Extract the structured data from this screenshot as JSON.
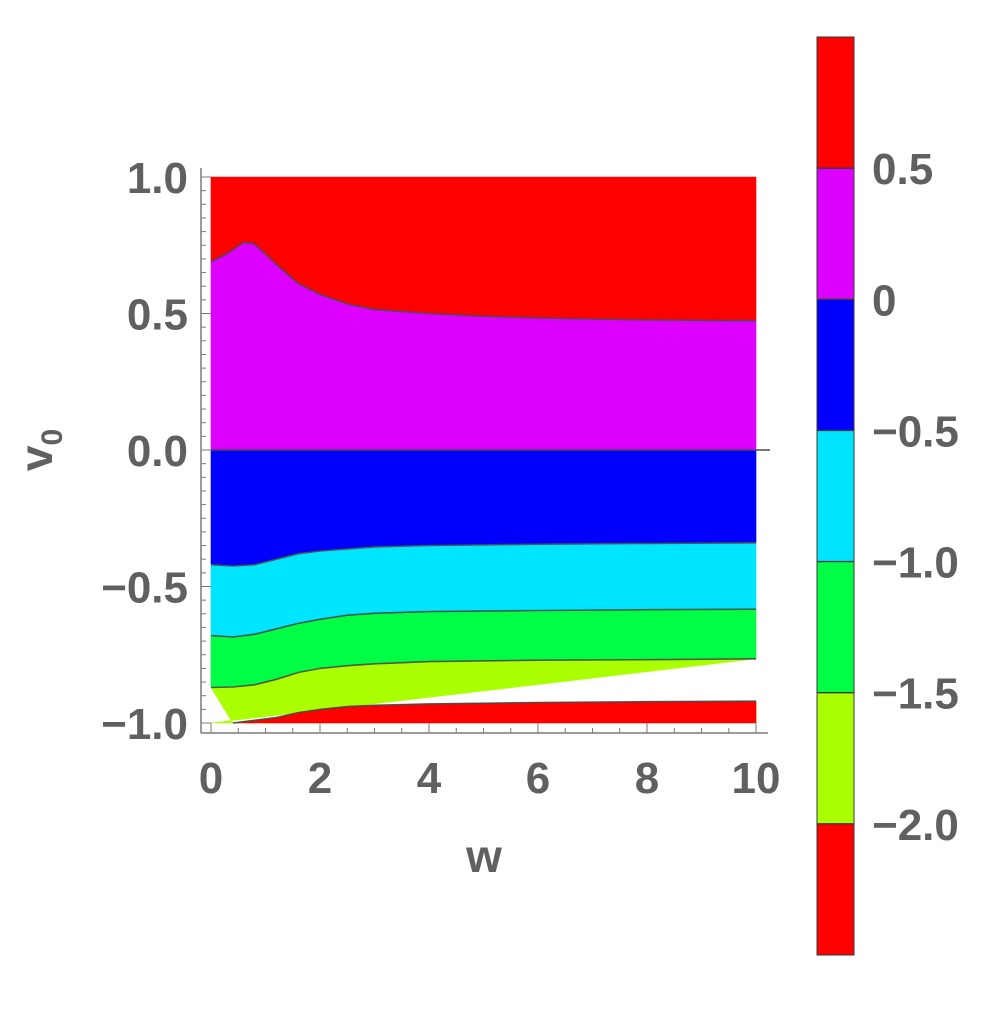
{
  "chart_data": {
    "type": "contour",
    "title": "",
    "xlabel": "w",
    "ylabel": {
      "base": "v",
      "sub": "0"
    },
    "xlim": [
      0,
      10
    ],
    "ylim": [
      -1,
      1
    ],
    "x_ticks": [
      {
        "value": 0,
        "label": "0"
      },
      {
        "value": 2,
        "label": "2"
      },
      {
        "value": 4,
        "label": "4"
      },
      {
        "value": 6,
        "label": "6"
      },
      {
        "value": 8,
        "label": "8"
      },
      {
        "value": 10,
        "label": "10"
      }
    ],
    "y_ticks": [
      {
        "value": 1.0,
        "label": "1.0"
      },
      {
        "value": 0.5,
        "label": "0.5"
      },
      {
        "value": 0.0,
        "label": "0.0"
      },
      {
        "value": -0.5,
        "label": "−0.5"
      },
      {
        "value": -1.0,
        "label": "−1.0"
      }
    ],
    "contours": [
      {
        "level": 0.5,
        "points": [
          [
            0,
            0.69
          ],
          [
            0.3,
            0.72
          ],
          [
            0.6,
            0.76
          ],
          [
            0.8,
            0.755
          ],
          [
            1.2,
            0.68
          ],
          [
            1.6,
            0.61
          ],
          [
            2,
            0.57
          ],
          [
            2.5,
            0.535
          ],
          [
            3,
            0.515
          ],
          [
            4,
            0.5
          ],
          [
            5,
            0.49
          ],
          [
            6,
            0.484
          ],
          [
            7,
            0.48
          ],
          [
            8,
            0.477
          ],
          [
            9,
            0.475
          ],
          [
            10,
            0.474
          ]
        ]
      },
      {
        "level": 0,
        "points": [
          [
            0,
            0
          ],
          [
            10,
            0
          ]
        ]
      },
      {
        "level": -0.5,
        "points": [
          [
            0,
            -0.42
          ],
          [
            0.4,
            -0.425
          ],
          [
            0.8,
            -0.42
          ],
          [
            1.2,
            -0.4
          ],
          [
            1.6,
            -0.38
          ],
          [
            2,
            -0.37
          ],
          [
            3,
            -0.355
          ],
          [
            4,
            -0.35
          ],
          [
            6,
            -0.345
          ],
          [
            8,
            -0.342
          ],
          [
            10,
            -0.34
          ]
        ]
      },
      {
        "level": -1.0,
        "points": [
          [
            0,
            -0.68
          ],
          [
            0.4,
            -0.685
          ],
          [
            0.8,
            -0.675
          ],
          [
            1.2,
            -0.655
          ],
          [
            1.6,
            -0.635
          ],
          [
            2,
            -0.62
          ],
          [
            2.5,
            -0.605
          ],
          [
            3,
            -0.598
          ],
          [
            4,
            -0.592
          ],
          [
            6,
            -0.588
          ],
          [
            8,
            -0.585
          ],
          [
            10,
            -0.583
          ]
        ]
      },
      {
        "level": -1.5,
        "points": [
          [
            0,
            -0.87
          ],
          [
            0.4,
            -0.868
          ],
          [
            0.8,
            -0.86
          ],
          [
            1.2,
            -0.84
          ],
          [
            1.6,
            -0.815
          ],
          [
            2,
            -0.8
          ],
          [
            2.5,
            -0.79
          ],
          [
            3,
            -0.783
          ],
          [
            4,
            -0.775
          ],
          [
            6,
            -0.77
          ],
          [
            8,
            -0.768
          ],
          [
            10,
            -0.765
          ]
        ]
      },
      {
        "level": -2.0,
        "points": [
          [
            0.4,
            -1
          ],
          [
            0.8,
            -0.99
          ],
          [
            1.2,
            -0.98
          ],
          [
            1.6,
            -0.962
          ],
          [
            2,
            -0.95
          ],
          [
            2.5,
            -0.94
          ],
          [
            3,
            -0.935
          ],
          [
            4,
            -0.93
          ],
          [
            6,
            -0.925
          ],
          [
            8,
            -0.922
          ],
          [
            10,
            -0.92
          ]
        ]
      }
    ],
    "bands": [
      {
        "range": "> 0.5",
        "color": "#ff0000"
      },
      {
        "range": "0 to 0.5",
        "color": "#dd00ff"
      },
      {
        "range": "-0.5 to 0",
        "color": "#0000ff"
      },
      {
        "range": "-1.0 to -0.5",
        "color": "#00e5ff"
      },
      {
        "range": "-1.5 to -1.0",
        "color": "#00ff44"
      },
      {
        "range": "-2.0 to -1.5",
        "color": "#aaff00"
      },
      {
        "range": "< -2.0",
        "color": "#ff0000"
      }
    ],
    "legend": {
      "type": "colorbar",
      "placement": "right",
      "colors_top_to_bottom": [
        "#ff0000",
        "#dd00ff",
        "#0000ff",
        "#00e5ff",
        "#00ff44",
        "#aaff00",
        "#ff0000"
      ],
      "labels": [
        "0.5",
        "0",
        "−0.5",
        "−1.0",
        "−1.5",
        "−2.0"
      ]
    },
    "grid": false
  }
}
